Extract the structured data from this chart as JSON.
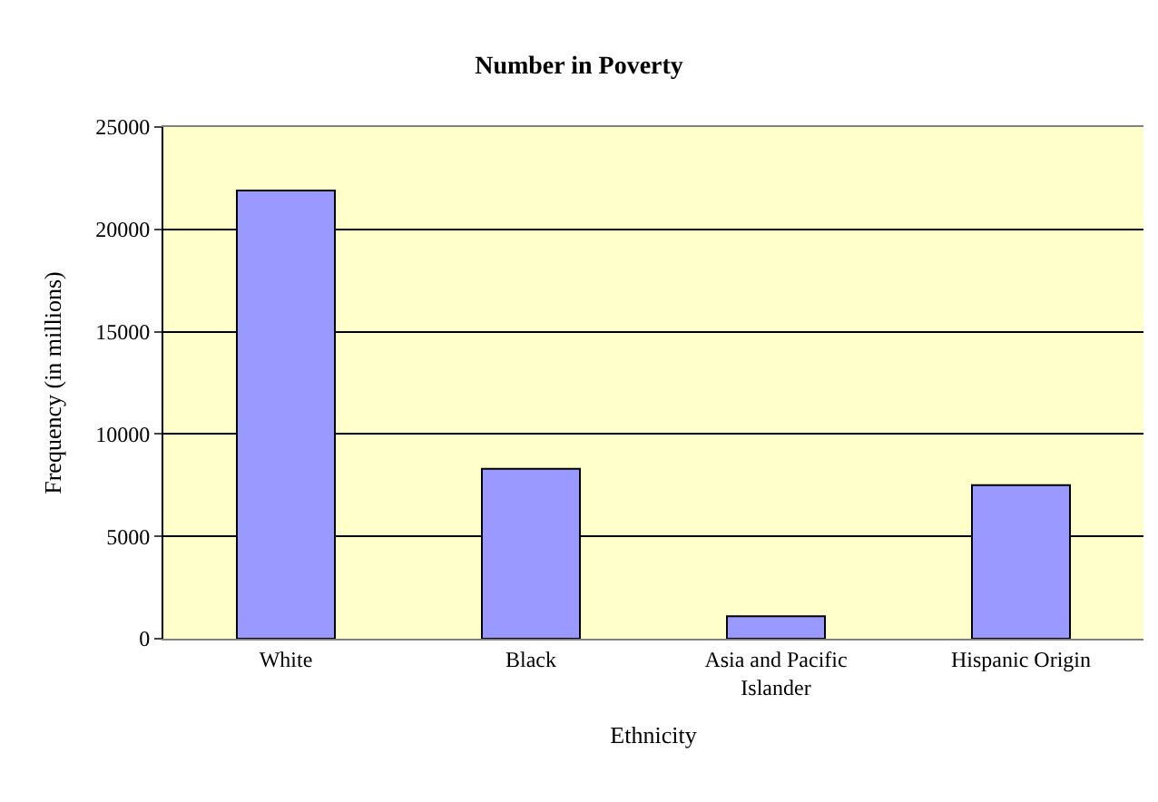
{
  "chart_data": {
    "type": "bar",
    "title": "Number in Poverty",
    "xlabel": "Ethnicity",
    "ylabel": "Frequency (in millions)",
    "categories": [
      "White",
      "Black",
      "Asia and Pacific Islander",
      "Hispanic Origin"
    ],
    "values": [
      21900,
      8300,
      1100,
      7500
    ],
    "color": "#9999ff",
    "ylim": [
      0,
      25000
    ],
    "yticks": [
      0,
      5000,
      10000,
      15000,
      20000,
      25000
    ],
    "grid": "y"
  }
}
